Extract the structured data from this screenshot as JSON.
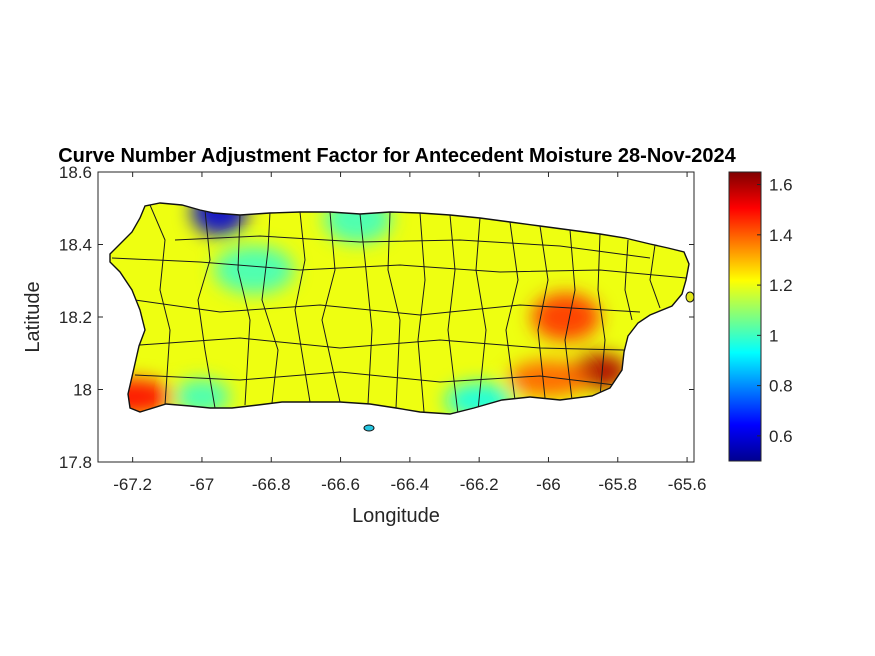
{
  "figure": {
    "title": "Curve Number Adjustment Factor for Antecedent Moisture 28-Nov-2024",
    "xlabel": "Longitude",
    "ylabel": "Latitude"
  },
  "chart_data": {
    "type": "heatmap",
    "title": "Curve Number Adjustment Factor for Antecedent Moisture 28-Nov-2024",
    "xlabel": "Longitude",
    "ylabel": "Latitude",
    "xlim": [
      -67.3,
      -65.58
    ],
    "ylim": [
      17.8,
      18.6
    ],
    "xticks": [
      -67.2,
      -67,
      -66.8,
      -66.6,
      -66.4,
      -66.2,
      -66,
      -65.8,
      -65.6
    ],
    "xtick_labels": [
      "-67.2",
      "-67",
      "-66.8",
      "-66.6",
      "-66.4",
      "-66.2",
      "-66",
      "-65.8",
      "-65.6"
    ],
    "yticks": [
      17.8,
      18,
      18.2,
      18.4,
      18.6
    ],
    "ytick_labels": [
      "17.8",
      "18",
      "18.2",
      "18.4",
      "18.6"
    ],
    "colormap": "jet",
    "colorbar": {
      "range": [
        0.5,
        1.65
      ],
      "ticks": [
        0.6,
        0.8,
        1,
        1.2,
        1.4,
        1.6
      ],
      "tick_labels": [
        "0.6",
        "0.8",
        "1",
        "1.2",
        "1.4",
        "1.6"
      ],
      "placement": "right"
    },
    "typical_value": 1.2,
    "regions": [
      {
        "lon": -65.85,
        "lat": 18.05,
        "value": 1.6
      },
      {
        "lon": -65.95,
        "lat": 18.2,
        "value": 1.45
      },
      {
        "lon": -66.0,
        "lat": 18.03,
        "value": 1.4
      },
      {
        "lon": -66.95,
        "lat": 18.49,
        "value": 0.6
      },
      {
        "lon": -66.2,
        "lat": 17.97,
        "value": 0.95
      },
      {
        "lon": -66.85,
        "lat": 18.33,
        "value": 1.0
      },
      {
        "lon": -67.0,
        "lat": 17.98,
        "value": 1.0
      },
      {
        "lon": -66.55,
        "lat": 18.47,
        "value": 1.0
      },
      {
        "lon": -67.2,
        "lat": 17.98,
        "value": 1.5
      }
    ]
  }
}
